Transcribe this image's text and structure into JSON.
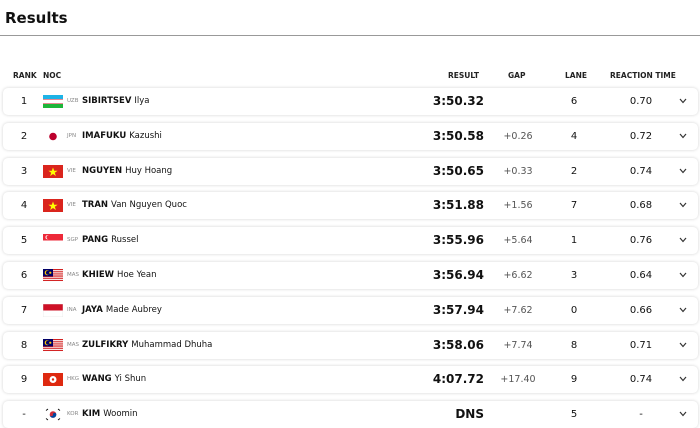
{
  "header": {
    "title": "Results"
  },
  "table": {
    "columns": [
      "RANK",
      "NOC",
      "RESULT",
      "GAP",
      "LANE",
      "REACTION TIME"
    ],
    "rows": [
      {
        "rank": 1,
        "noc": "UZB",
        "surname": "SIBIRTSEV",
        "given": "Ilya",
        "result": "3:50.32",
        "lane": 6,
        "reaction": "0.70"
      },
      {
        "rank": 2,
        "noc": "JPN",
        "surname": "IMAFUKU",
        "given": "Kazushi",
        "result": "3:50.58",
        "gap": "+0.26",
        "lane": 4,
        "reaction": "0.72"
      },
      {
        "rank": 3,
        "noc": "VIE",
        "surname": "NGUYEN",
        "given": "Huy Hoang",
        "result": "3:50.65",
        "gap": "+0.33",
        "lane": 2,
        "reaction": "0.74"
      },
      {
        "rank": 4,
        "noc": "VIE",
        "surname": "TRAN",
        "given": "Van Nguyen Quoc",
        "result": "3:51.88",
        "gap": "+1.56",
        "lane": 7,
        "reaction": "0.68"
      },
      {
        "rank": 5,
        "noc": "SGP",
        "surname": "PANG",
        "given": "Russel",
        "result": "3:55.96",
        "gap": "+5.64",
        "lane": 1,
        "reaction": "0.76"
      },
      {
        "rank": 6,
        "noc": "MAS",
        "surname": "KHIEW",
        "given": "Hoe Yean",
        "result": "3:56.94",
        "gap": "+6.62",
        "lane": 3,
        "reaction": "0.64"
      },
      {
        "rank": 7,
        "noc": "INA",
        "surname": "JAYA",
        "given": "Made Aubrey",
        "result": "3:57.94",
        "gap": "+7.62",
        "lane": 0,
        "reaction": "0.66"
      },
      {
        "rank": 8,
        "noc": "MAS",
        "surname": "ZULFIKRY",
        "given": "Muhammad Dhuha",
        "result": "3:58.06",
        "gap": "+7.74",
        "lane": 8,
        "reaction": "0.71"
      },
      {
        "rank": 9,
        "noc": "HKG",
        "surname": "WANG",
        "given": "Yi Shun",
        "result": "4:07.72",
        "gap": "+17.40",
        "lane": 9,
        "reaction": "0.74"
      },
      {
        "rank": "-",
        "noc": "KOR",
        "surname": "KIM",
        "given": "Woomin",
        "result": "DNS",
        "lane": 5,
        "reaction": "-"
      }
    ]
  }
}
